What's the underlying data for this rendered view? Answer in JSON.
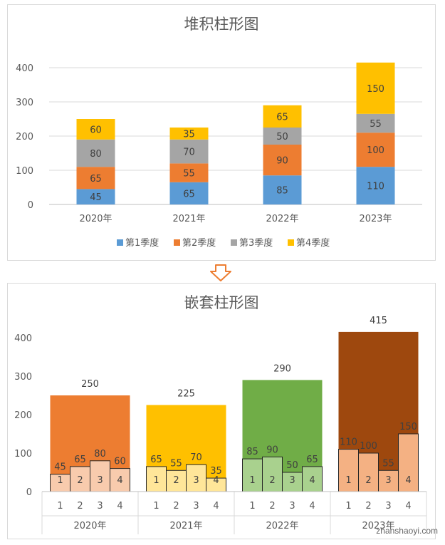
{
  "chart_data": [
    {
      "type": "bar",
      "stacked": true,
      "title": "堆积柱形图",
      "categories": [
        "2020年",
        "2021年",
        "2022年",
        "2023年"
      ],
      "series": [
        {
          "name": "第1季度",
          "color": "#5b9bd5",
          "values": [
            45,
            65,
            85,
            110
          ]
        },
        {
          "name": "第2季度",
          "color": "#ed7d31",
          "values": [
            65,
            55,
            90,
            100
          ]
        },
        {
          "name": "第3季度",
          "color": "#a5a5a5",
          "values": [
            80,
            70,
            50,
            55
          ]
        },
        {
          "name": "第4季度",
          "color": "#ffc000",
          "values": [
            60,
            35,
            65,
            150
          ]
        }
      ],
      "ylim": [
        0,
        400
      ],
      "yticks": [
        0,
        100,
        200,
        300,
        400
      ],
      "grid": true,
      "legend": "bottom"
    },
    {
      "type": "bar",
      "nested": true,
      "title": "嵌套柱形图",
      "categories": [
        "2020年",
        "2021年",
        "2022年",
        "2023年"
      ],
      "sub_categories": [
        "1",
        "2",
        "3",
        "4"
      ],
      "totals": [
        250,
        225,
        290,
        415
      ],
      "total_colors": [
        "#ed7d31",
        "#ffc000",
        "#70ad47",
        "#9e480e"
      ],
      "inner_colors": [
        "#f8cbad",
        "#ffe699",
        "#a9d18e",
        "#f4b183"
      ],
      "quarter_values": [
        [
          45,
          65,
          80,
          60
        ],
        [
          65,
          55,
          70,
          35
        ],
        [
          85,
          90,
          50,
          65
        ],
        [
          110,
          100,
          55,
          150
        ]
      ],
      "ylim": [
        0,
        400
      ],
      "yticks": [
        0,
        100,
        200,
        300,
        400
      ],
      "grid": false
    }
  ],
  "watermark": "zhanshaoyi.com"
}
